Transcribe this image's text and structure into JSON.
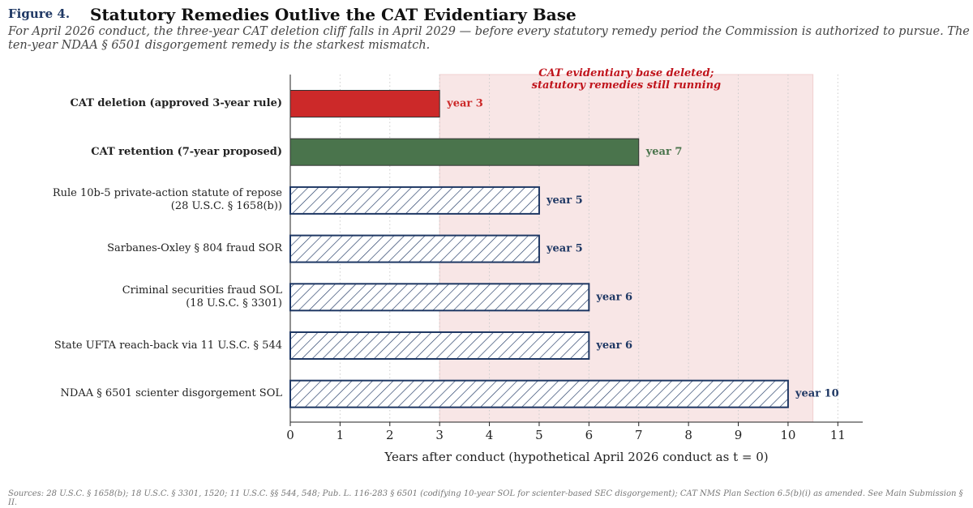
{
  "chart_data": {
    "type": "bar",
    "figure_label": "Figure 4.",
    "title": "Statutory Remedies Outlive the CAT Evidentiary Base",
    "subtitle": "For April 2026 conduct, the three-year CAT deletion cliff falls in April 2029 — before every statutory remedy period the Commission is authorized to pursue. The\nten-year NDAA § 6501 disgorgement remedy is the starkest mismatch.",
    "categories": [
      "CAT deletion (approved 3-year rule)",
      "CAT retention (7-year proposed)",
      "Rule 10b-5 private-action statute of repose\n(28 U.S.C. § 1658(b))",
      "Sarbanes-Oxley § 804 fraud SOR",
      "Criminal securities fraud SOL\n(18 U.S.C. § 3301)",
      "State UFTA reach-back via 11 U.S.C. § 544",
      "NDAA § 6501 scienter disgorgement SOL"
    ],
    "values": [
      3,
      7,
      5,
      5,
      6,
      6,
      10
    ],
    "value_labels": [
      "year 3",
      "year 7",
      "year 5",
      "year 5",
      "year 6",
      "year 6",
      "year 10"
    ],
    "colors": [
      "#cc2929",
      "#4a744c",
      "#1f3864",
      "#1f3864",
      "#1f3864",
      "#1f3864",
      "#1f3864"
    ],
    "styles": [
      "solid",
      "solid",
      "hatch",
      "hatch",
      "hatch",
      "hatch",
      "hatch"
    ],
    "bold_categories": [
      true,
      true,
      false,
      false,
      false,
      false,
      false
    ],
    "shade": {
      "from": 3,
      "to": 10.5,
      "color": "#f8e6e6"
    },
    "annotation": "CAT evidentiary base deleted;\nstatutory remedies still running",
    "xlabel": "Years after conduct (hypothetical April 2026 conduct as t = 0)",
    "xlim": [
      0,
      11.5
    ],
    "xticks": [
      0,
      1,
      2,
      3,
      4,
      5,
      6,
      7,
      8,
      9,
      10,
      11
    ],
    "grid": true,
    "source": "Sources: 28 U.S.C. § 1658(b); 18 U.S.C. § 3301, 1520; 11 U.S.C. §§ 544, 548; Pub. L. 116-283 § 6501 (codifying 10-year SOL for scienter-based SEC disgorgement); CAT NMS Plan Section 6.5(b)(i) as amended. See Main Submission § II."
  }
}
